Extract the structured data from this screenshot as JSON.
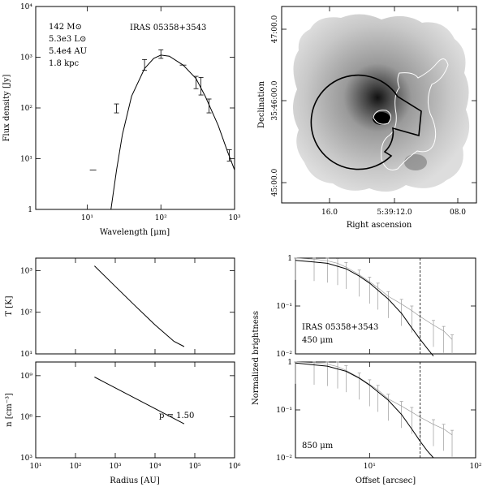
{
  "chart_data": [
    {
      "id": "sed",
      "type": "scatter",
      "title": "IRAS 05358+3543",
      "annotations": [
        "142 M⊙",
        "5.3e3 L⊙",
        "5.4e4 AU",
        "1.8 kpc"
      ],
      "xlabel": "Wavelength [μm]",
      "ylabel": "Flux density [Jy]",
      "xscale": "log",
      "yscale": "log",
      "xlim": [
        2,
        1000
      ],
      "ylim": [
        1,
        10000
      ],
      "xticks": [
        {
          "v": 10,
          "label": "10¹"
        },
        {
          "v": 100,
          "label": "10²"
        },
        {
          "v": 1000,
          "label": "10³"
        }
      ],
      "yticks": [
        {
          "v": 1,
          "label": "1"
        },
        {
          "v": 10,
          "label": "10¹"
        },
        {
          "v": 100,
          "label": "10²"
        },
        {
          "v": 1000,
          "label": "10³"
        },
        {
          "v": 10000,
          "label": "10⁴"
        }
      ],
      "model_curve": {
        "x": [
          21,
          25,
          30,
          40,
          60,
          80,
          100,
          130,
          200,
          300,
          400,
          600,
          800,
          1000
        ],
        "y": [
          1,
          6,
          30,
          170,
          600,
          950,
          1100,
          1050,
          700,
          380,
          170,
          45,
          14,
          6
        ]
      },
      "errorbar_points": [
        {
          "x": 25,
          "y": 80,
          "lo": 80,
          "hi": 120
        },
        {
          "x": 60,
          "y": 700,
          "lo": 550,
          "hi": 900
        },
        {
          "x": 100,
          "y": 1150,
          "lo": 950,
          "hi": 1400
        },
        {
          "x": 300,
          "y": 330,
          "lo": 240,
          "hi": 420
        },
        {
          "x": 350,
          "y": 280,
          "lo": 180,
          "hi": 400
        },
        {
          "x": 450,
          "y": 120,
          "lo": 80,
          "hi": 150
        },
        {
          "x": 850,
          "y": 12,
          "lo": 9,
          "hi": 15
        }
      ],
      "upper_limits": [
        {
          "x": 12,
          "y": 6
        },
        {
          "x": 200,
          "y": 700
        }
      ]
    },
    {
      "id": "map",
      "type": "heatmap",
      "xlabel": "Right ascension",
      "ylabel": "Declination",
      "xticks": [
        "16.0",
        "5:39:12.0",
        "08.0"
      ],
      "yticks": [
        "47:00.0",
        "35:46:00.0",
        "45:00.0"
      ]
    },
    {
      "id": "temperature",
      "type": "line",
      "ylabel": "T [K]",
      "xscale": "log",
      "yscale": "log",
      "xlim": [
        10,
        1000000
      ],
      "ylim": [
        10,
        2000
      ],
      "yticks": [
        {
          "v": 10,
          "label": "10¹"
        },
        {
          "v": 100,
          "label": "10²"
        },
        {
          "v": 1000,
          "label": "10³"
        }
      ],
      "x": [
        300,
        1000,
        3000,
        10000,
        30000,
        54000
      ],
      "y": [
        1300,
        420,
        150,
        50,
        20,
        15
      ]
    },
    {
      "id": "density",
      "type": "line",
      "ylabel": "n [cm⁻³]",
      "xlabel": "Radius [AU]",
      "xscale": "log",
      "yscale": "log",
      "xlim": [
        10,
        1000000
      ],
      "ylim": [
        1000,
        10000000000
      ],
      "xticks": [
        {
          "v": 10,
          "label": "10¹"
        },
        {
          "v": 100,
          "label": "10²"
        },
        {
          "v": 1000,
          "label": "10³"
        },
        {
          "v": 10000,
          "label": "10⁴"
        },
        {
          "v": 100000,
          "label": "10⁵"
        },
        {
          "v": 1000000,
          "label": "10⁶"
        }
      ],
      "yticks": [
        {
          "v": 1000,
          "label": "10³"
        },
        {
          "v": 1000000,
          "label": "10⁶"
        },
        {
          "v": 1000000000,
          "label": "10⁹"
        }
      ],
      "annotation": "p = 1.50",
      "x": [
        300,
        54000
      ],
      "y": [
        800000000,
        300000
      ]
    },
    {
      "id": "profile450",
      "type": "line",
      "title": "IRAS 05358+3543",
      "annotation": "450 μm",
      "ylabel": "Normalized brightness",
      "xscale": "log",
      "yscale": "log",
      "xlim": [
        2,
        100
      ],
      "ylim": [
        0.01,
        1
      ],
      "yticks": [
        {
          "v": 0.01,
          "label": "10⁻²"
        },
        {
          "v": 0.1,
          "label": "10⁻¹"
        },
        {
          "v": 1,
          "label": "1"
        }
      ],
      "vline_x": 30,
      "model_x": [
        2,
        4,
        6,
        8,
        10,
        15,
        20,
        25,
        30,
        35,
        40
      ],
      "model_y": [
        0.9,
        0.78,
        0.6,
        0.42,
        0.3,
        0.14,
        0.07,
        0.035,
        0.02,
        0.013,
        0.009
      ],
      "data_x": [
        2,
        3,
        4,
        5,
        6,
        8,
        10,
        12,
        15,
        20,
        25,
        30,
        40,
        50,
        60
      ],
      "data_y": [
        1,
        0.95,
        0.88,
        0.78,
        0.65,
        0.45,
        0.32,
        0.24,
        0.16,
        0.11,
        0.08,
        0.06,
        0.04,
        0.03,
        0.02
      ]
    },
    {
      "id": "profile850",
      "type": "line",
      "annotation": "850 μm",
      "ylabel": "Normalized brightness",
      "xlabel": "Offset [arcsec]",
      "xscale": "log",
      "yscale": "log",
      "xlim": [
        2,
        100
      ],
      "ylim": [
        0.01,
        1
      ],
      "xticks": [
        {
          "v": 10,
          "label": "10¹"
        },
        {
          "v": 100,
          "label": "10²"
        }
      ],
      "yticks": [
        {
          "v": 0.01,
          "label": "10⁻²"
        },
        {
          "v": 0.1,
          "label": "10⁻¹"
        },
        {
          "v": 1,
          "label": "1"
        }
      ],
      "vline_x": 30,
      "model_x": [
        2,
        4,
        6,
        8,
        10,
        15,
        20,
        25,
        30,
        35,
        40
      ],
      "model_y": [
        0.95,
        0.82,
        0.64,
        0.46,
        0.33,
        0.16,
        0.08,
        0.04,
        0.022,
        0.014,
        0.01
      ],
      "data_x": [
        2,
        3,
        4,
        5,
        6,
        8,
        10,
        12,
        15,
        20,
        25,
        30,
        40,
        50,
        60
      ],
      "data_y": [
        1,
        0.96,
        0.9,
        0.8,
        0.67,
        0.47,
        0.34,
        0.26,
        0.17,
        0.12,
        0.09,
        0.07,
        0.05,
        0.04,
        0.03
      ]
    }
  ]
}
